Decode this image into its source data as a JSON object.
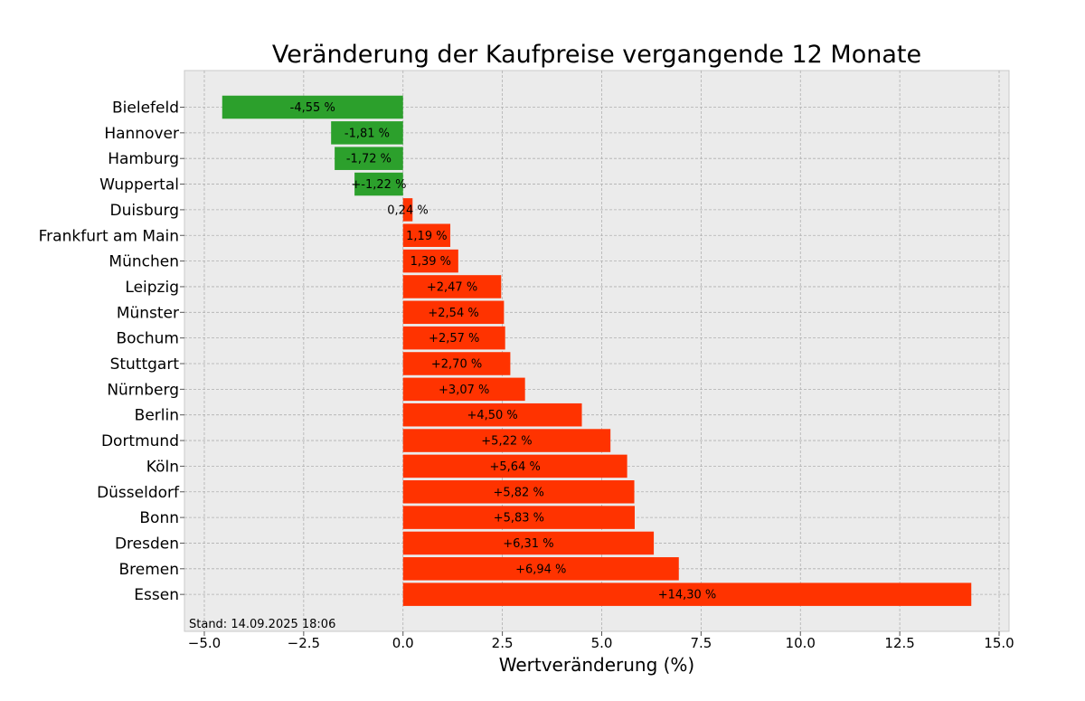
{
  "chart_data": {
    "type": "bar",
    "orientation": "horizontal",
    "title": "Veränderung der Kaufpreise vergangende 12 Monate",
    "xlabel": "Wertveränderung (%)",
    "ylabel": "",
    "xlim": [
      -5.5,
      15.25
    ],
    "xticks": [
      -5.0,
      -2.5,
      0.0,
      2.5,
      5.0,
      7.5,
      10.0,
      12.5,
      15.0
    ],
    "xtick_labels": [
      "−5.0",
      "−2.5",
      "0.0",
      "2.5",
      "5.0",
      "7.5",
      "10.0",
      "12.5",
      "15.0"
    ],
    "grid": true,
    "categories": [
      "Bielefeld",
      "Hannover",
      "Hamburg",
      "Wuppertal",
      "Duisburg",
      "Frankfurt am Main",
      "München",
      "Leipzig",
      "Münster",
      "Bochum",
      "Stuttgart",
      "Nürnberg",
      "Berlin",
      "Dortmund",
      "Köln",
      "Düsseldorf",
      "Bonn",
      "Dresden",
      "Bremen",
      "Essen"
    ],
    "values": [
      -4.55,
      -1.81,
      -1.72,
      -1.22,
      0.24,
      1.19,
      1.39,
      2.47,
      2.54,
      2.57,
      2.7,
      3.07,
      4.5,
      5.22,
      5.64,
      5.82,
      5.83,
      6.31,
      6.94,
      14.3
    ],
    "value_labels": [
      "-4,55 %",
      "-1,81 %",
      "-1,72 %",
      "+-1,22 %",
      "0,24 %",
      "1,19 %",
      "1,39 %",
      "+2,47 %",
      "+2,54 %",
      "+2,57 %",
      "+2,70 %",
      "+3,07 %",
      "+4,50 %",
      "+5,22 %",
      "+5,64 %",
      "+5,82 %",
      "+5,83 %",
      "+6,31 %",
      "+6,94 %",
      "+14,30 %"
    ],
    "colors": {
      "negative": "#2ca02c",
      "positive": "#ff3300",
      "background": "#ebebeb"
    },
    "footnote": "Stand: 14.09.2025 18:06"
  }
}
